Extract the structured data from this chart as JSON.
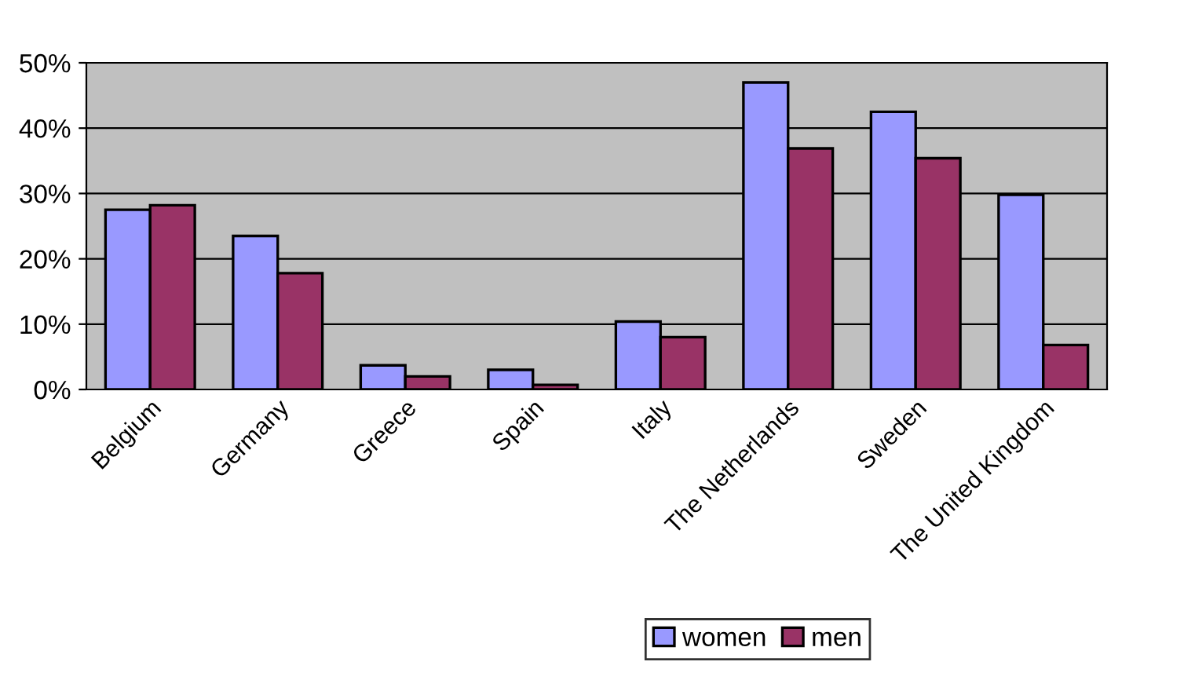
{
  "chart_data": {
    "type": "bar",
    "categories": [
      "Belgium",
      "Germany",
      "Greece",
      "Spain",
      "Italy",
      "The Netherlands",
      "Sweden",
      "The United Kingdom"
    ],
    "series": [
      {
        "name": "women",
        "color": "#9999ff",
        "values": [
          27.5,
          23.5,
          3.7,
          3,
          10.4,
          47,
          42.5,
          29.8
        ]
      },
      {
        "name": "men",
        "color": "#993366",
        "values": [
          28.2,
          17.8,
          2,
          0.7,
          8,
          36.9,
          35.4,
          6.8
        ]
      }
    ],
    "ylim": [
      0,
      50
    ],
    "yticks": [
      {
        "value": 0,
        "label": "0%"
      },
      {
        "value": 10,
        "label": "10%"
      },
      {
        "value": 20,
        "label": "20%"
      },
      {
        "value": 30,
        "label": "30%"
      },
      {
        "value": 40,
        "label": "40%"
      },
      {
        "value": 50,
        "label": "50%"
      }
    ],
    "grid": "y",
    "legend": "bottom"
  }
}
